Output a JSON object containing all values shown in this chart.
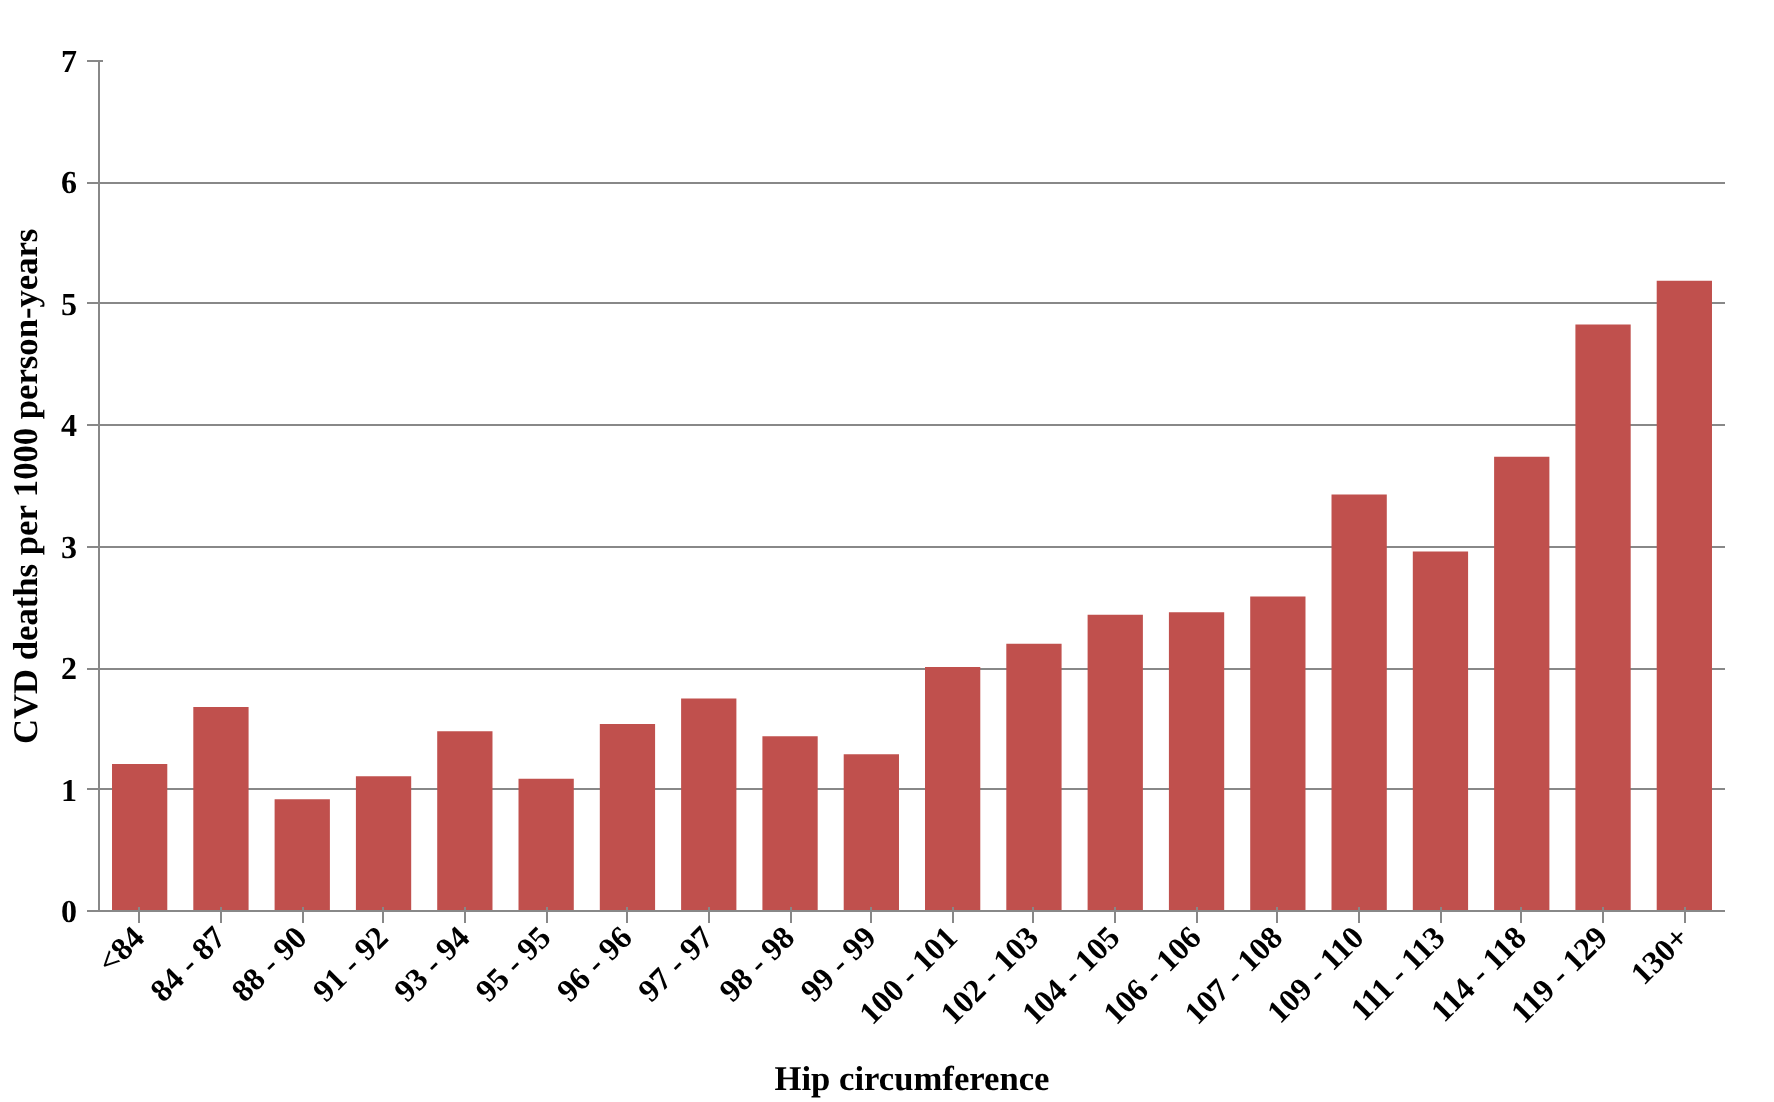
{
  "chart_data": {
    "type": "bar",
    "xlabel": "Hip circumference",
    "ylabel": "CVD deaths per 1000 person-years",
    "categories": [
      "<84",
      "84 - 87",
      "88 - 90",
      "91 - 92",
      "93 - 94",
      "95 - 95",
      "96 - 96",
      "97 - 97",
      "98 - 98",
      "99 - 99",
      "100 - 101",
      "102 - 103",
      "104 - 105",
      "106 - 106",
      "107 - 108",
      "109 - 110",
      "111 - 113",
      "114 - 118",
      "119 - 129",
      "130+"
    ],
    "values": [
      1.21,
      1.68,
      0.92,
      1.11,
      1.48,
      1.09,
      1.54,
      1.75,
      1.44,
      1.29,
      2.01,
      2.2,
      2.44,
      2.46,
      2.59,
      3.43,
      2.96,
      3.74,
      4.83,
      5.19
    ],
    "color": "#c0504d",
    "ylim": [
      0,
      7
    ],
    "yticks": [
      0,
      1,
      2,
      3,
      4,
      5,
      6,
      7
    ],
    "grid": "y"
  }
}
